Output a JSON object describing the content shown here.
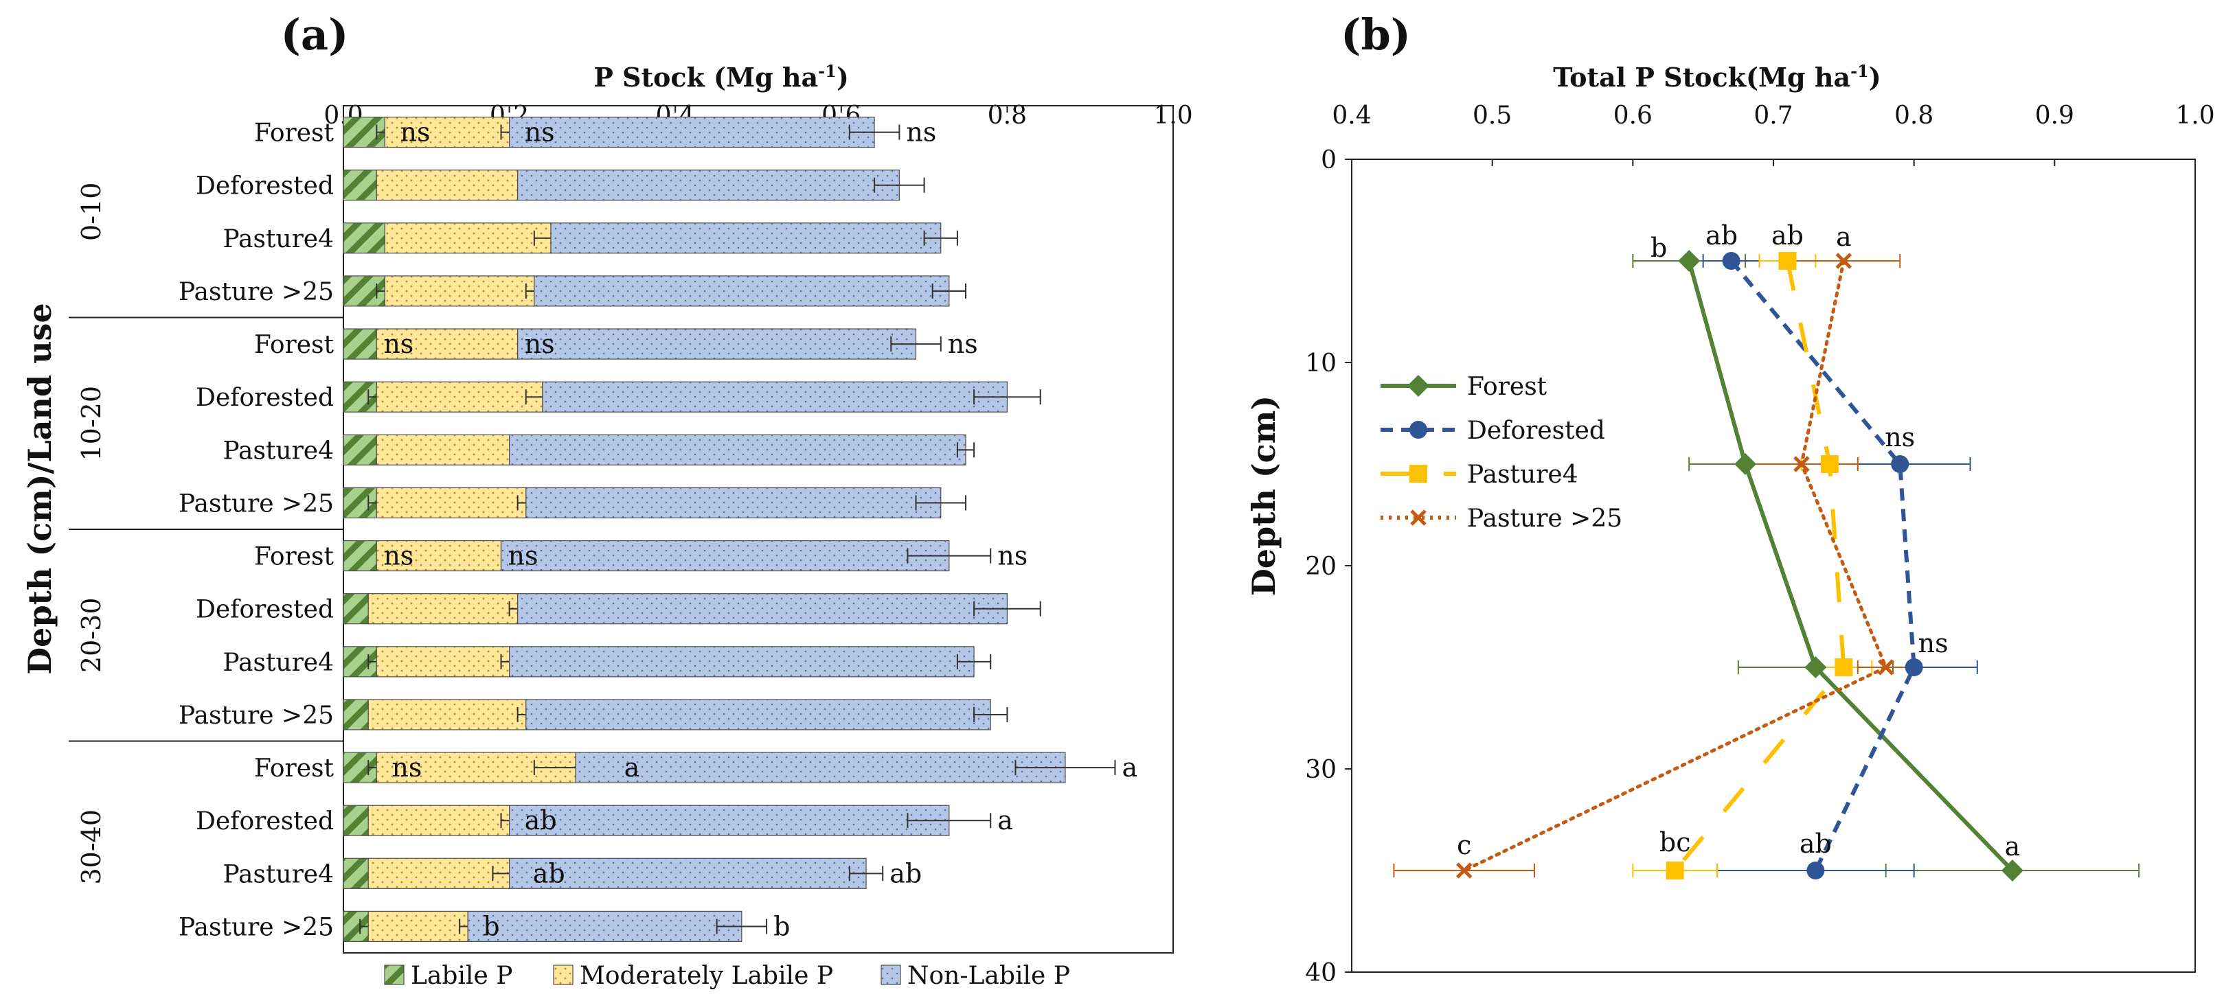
{
  "chart_data": [
    {
      "panel_label": "(a)",
      "type": "bar",
      "orientation": "horizontal",
      "stacked": true,
      "title": "",
      "xlabel": "P Stock (Mg ha",
      "xlabel_sup": "-1",
      "xlabel_close": ")",
      "ylabel": "Depth (cm)/Land use",
      "xlim": [
        0.0,
        1.0
      ],
      "xticks": [
        "0.0",
        "0.2",
        "0.4",
        "0.6",
        "0.8",
        "1.0"
      ],
      "groups": [
        {
          "name": "0-10",
          "categories": [
            "Forest",
            "Deforested",
            "Pasture4",
            "Pasture >25"
          ]
        },
        {
          "name": "10-20",
          "categories": [
            "Forest",
            "Deforested",
            "Pasture4",
            "Pasture >25"
          ]
        },
        {
          "name": "20-30",
          "categories": [
            "Forest",
            "Deforested",
            "Pasture4",
            "Pasture >25"
          ]
        },
        {
          "name": "30-40",
          "categories": [
            "Forest",
            "Deforested",
            "Pasture4",
            "Pasture >25"
          ]
        }
      ],
      "series": [
        {
          "name": "Labile P",
          "color": "#6aa84f",
          "values": [
            0.05,
            0.04,
            0.05,
            0.05,
            0.04,
            0.04,
            0.04,
            0.04,
            0.04,
            0.03,
            0.04,
            0.03,
            0.04,
            0.03,
            0.03,
            0.03
          ],
          "errors": [
            0.01,
            0.0,
            0.0,
            0.01,
            0.0,
            0.01,
            0.0,
            0.01,
            0.0,
            0.0,
            0.01,
            0.0,
            0.01,
            0.0,
            0.0,
            0.01
          ]
        },
        {
          "name": "Moderately Labile P",
          "color": "#ffe18f",
          "values": [
            0.15,
            0.17,
            0.2,
            0.18,
            0.17,
            0.2,
            0.16,
            0.18,
            0.15,
            0.18,
            0.16,
            0.19,
            0.24,
            0.17,
            0.17,
            0.12
          ],
          "errors": [
            0.01,
            0.0,
            0.02,
            0.01,
            0.0,
            0.02,
            0.0,
            0.01,
            0.0,
            0.01,
            0.01,
            0.01,
            0.05,
            0.01,
            0.02,
            0.01
          ]
        },
        {
          "name": "Non-Labile P",
          "color": "#b4c7e7",
          "values": [
            0.44,
            0.46,
            0.47,
            0.5,
            0.48,
            0.56,
            0.55,
            0.5,
            0.54,
            0.59,
            0.56,
            0.56,
            0.59,
            0.53,
            0.43,
            0.33
          ],
          "errors": [
            0.03,
            0.03,
            0.02,
            0.02,
            0.03,
            0.04,
            0.01,
            0.03,
            0.05,
            0.04,
            0.02,
            0.02,
            0.06,
            0.05,
            0.02,
            0.03
          ]
        }
      ],
      "annotations": [
        {
          "bar": 0,
          "series": 0,
          "text": "ns"
        },
        {
          "bar": 0,
          "series": 1,
          "text": "ns"
        },
        {
          "bar": 0,
          "series": 2,
          "text": "ns"
        },
        {
          "bar": 4,
          "series": 0,
          "text": "ns"
        },
        {
          "bar": 4,
          "series": 1,
          "text": "ns"
        },
        {
          "bar": 4,
          "series": 2,
          "text": "ns"
        },
        {
          "bar": 8,
          "series": 0,
          "text": "ns"
        },
        {
          "bar": 8,
          "series": 1,
          "text": "ns"
        },
        {
          "bar": 8,
          "series": 2,
          "text": "ns"
        },
        {
          "bar": 12,
          "series": 0,
          "text": "ns"
        },
        {
          "bar": 12,
          "series": 1,
          "text": "a"
        },
        {
          "bar": 12,
          "series": 2,
          "text": "a"
        },
        {
          "bar": 13,
          "series": 1,
          "text": "ab"
        },
        {
          "bar": 13,
          "series": 2,
          "text": "a"
        },
        {
          "bar": 14,
          "series": 1,
          "text": "ab"
        },
        {
          "bar": 14,
          "series": 2,
          "text": "ab"
        },
        {
          "bar": 15,
          "series": 1,
          "text": "b"
        },
        {
          "bar": 15,
          "series": 2,
          "text": "b"
        }
      ],
      "legend": [
        "Labile P",
        "Moderately Labile P",
        "Non-Labile P"
      ],
      "legend_position": "bottom"
    },
    {
      "panel_label": "(b)",
      "type": "line",
      "title": "",
      "xlabel": "Total P Stock(Mg ha",
      "xlabel_sup": "-1",
      "xlabel_close": ")",
      "ylabel": "Depth (cm)",
      "xlim": [
        0.4,
        1.0
      ],
      "ylim": [
        0,
        40
      ],
      "y_inverted": true,
      "xticks": [
        "0.4",
        "0.5",
        "0.6",
        "0.7",
        "0.8",
        "0.9",
        "1.0"
      ],
      "yticks": [
        "0",
        "10",
        "20",
        "30",
        "40"
      ],
      "y": [
        5,
        15,
        25,
        35
      ],
      "series": [
        {
          "name": "Forest",
          "color": "#548235",
          "style": "solid",
          "marker": "diamond",
          "x": [
            0.64,
            0.68,
            0.73,
            0.87
          ],
          "errors": [
            0.04,
            0.04,
            0.055,
            0.09
          ],
          "labels": [
            "b",
            "",
            "",
            "a"
          ]
        },
        {
          "name": "Deforested",
          "color": "#2f5597",
          "style": "dashed",
          "marker": "circle",
          "x": [
            0.67,
            0.79,
            0.8,
            0.73
          ],
          "errors": [
            0.02,
            0.05,
            0.045,
            0.07
          ],
          "labels": [
            "ab",
            "ns",
            "ns",
            "ab"
          ]
        },
        {
          "name": "Pasture4",
          "color": "#ffc000",
          "style": "longdash",
          "marker": "square",
          "x": [
            0.71,
            0.74,
            0.75,
            0.63
          ],
          "errors": [
            0.02,
            0.02,
            0.02,
            0.03
          ],
          "labels": [
            "ab",
            "",
            "",
            "bc"
          ]
        },
        {
          "name": "Pasture >25",
          "color": "#c55a11",
          "style": "dotted",
          "marker": "x",
          "x": [
            0.75,
            0.72,
            0.78,
            0.48
          ],
          "errors": [
            0.04,
            0.04,
            0.02,
            0.05
          ],
          "labels": [
            "a",
            "",
            "",
            "c"
          ]
        }
      ],
      "legend": [
        "Forest",
        "Deforested",
        "Pasture4",
        "Pasture >25"
      ],
      "legend_position": "center-left"
    }
  ]
}
